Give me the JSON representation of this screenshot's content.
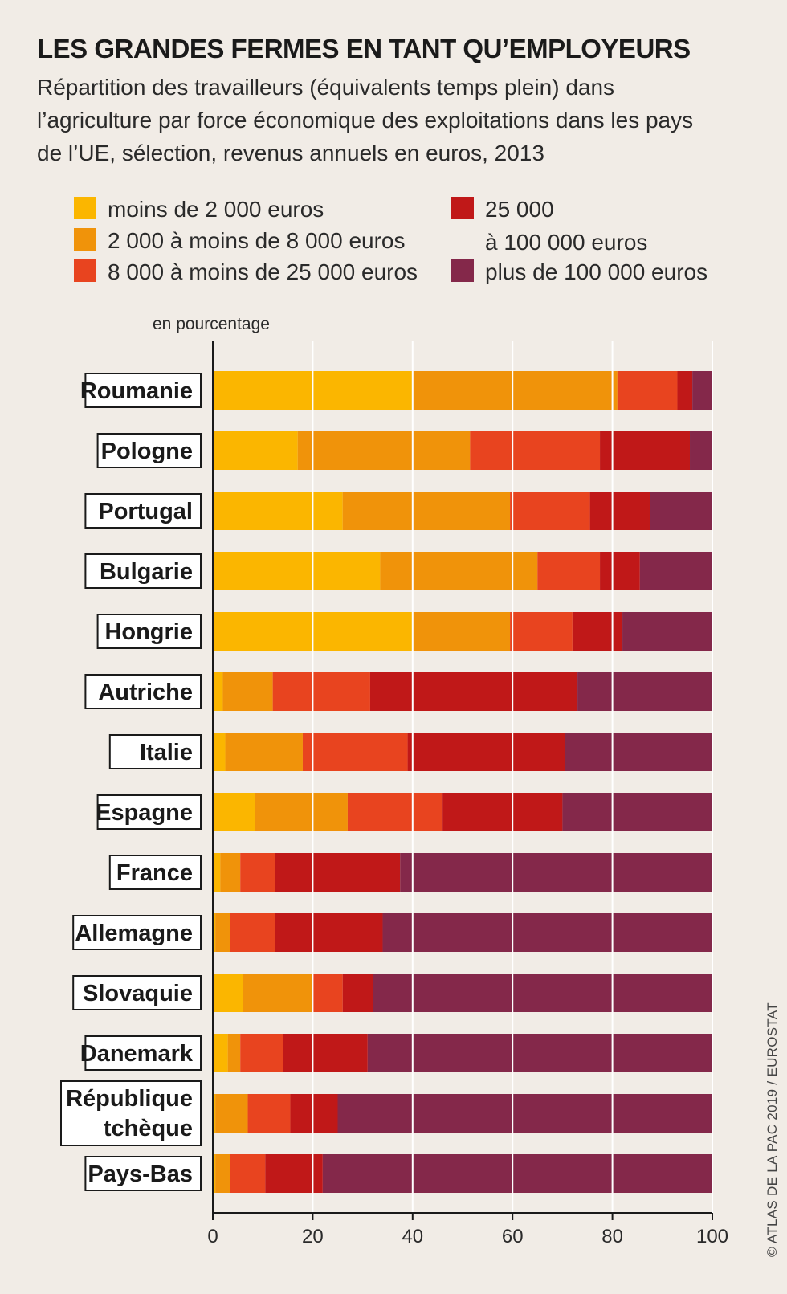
{
  "title": "LES GRANDES FERMES EN TANT QU’EMPLOYEURS",
  "subtitle": "Répartition des travailleurs (équivalents temps plein) dans l’agriculture par force économique des exploitations dans les pays de l’UE, sélection, revenus annuels en euros, 2013",
  "unit_label": "en pourcentage",
  "credit": "© ATLAS DE LA PAC 2019 / EUROSTAT",
  "legend": [
    {
      "label": "moins de 2 000 euros",
      "color": "#fbb600"
    },
    {
      "label": "2 000 à moins de 8 000 euros",
      "color": "#f0930a"
    },
    {
      "label": "8 000 à moins de 25 000 euros",
      "color": "#e8441f"
    },
    {
      "label": "25 000\nà 100 000 euros",
      "color": "#c01818"
    },
    {
      "label": "plus de 100 000 euros",
      "color": "#84284a"
    }
  ],
  "chart_data": {
    "type": "bar",
    "orientation": "horizontal",
    "stacked": true,
    "xlim": [
      0,
      100
    ],
    "xticks": [
      0,
      20,
      40,
      60,
      80,
      100
    ],
    "categories": [
      "Roumanie",
      "Pologne",
      "Portugal",
      "Bulgarie",
      "Hongrie",
      "Autriche",
      "Italie",
      "Espagne",
      "France",
      "Allemagne",
      "Slovaquie",
      "Danemark",
      "République\ntchèque",
      "Pays-Bas"
    ],
    "series": [
      {
        "name": "moins de 2 000 euros",
        "color": "#fbb600",
        "values": [
          40,
          17,
          26,
          33.5,
          40,
          2,
          2.5,
          8.5,
          1.5,
          0.5,
          6,
          3,
          0.5,
          0.5
        ]
      },
      {
        "name": "2 000 à moins de 8 000 euros",
        "color": "#f0930a",
        "values": [
          41,
          34.5,
          33.5,
          31.5,
          19.5,
          10,
          15.5,
          18.5,
          4,
          3,
          14,
          2.5,
          6.5,
          3
        ]
      },
      {
        "name": "8 000 à moins de 25 000 euros",
        "color": "#e8441f",
        "values": [
          12,
          26,
          16,
          12.5,
          12.5,
          19.5,
          21,
          19,
          7,
          9,
          6,
          8.5,
          8.5,
          7
        ]
      },
      {
        "name": "25 000 à 100 000 euros",
        "color": "#c01818",
        "values": [
          3,
          18,
          12,
          8,
          10,
          41.5,
          31.5,
          24,
          25,
          21.5,
          6,
          17,
          9.5,
          11.5
        ]
      },
      {
        "name": "plus de 100 000 euros",
        "color": "#84284a",
        "values": [
          4,
          4.5,
          12.5,
          14.5,
          18,
          27,
          29.5,
          30,
          62.5,
          66,
          68,
          69,
          75,
          78
        ]
      }
    ]
  }
}
